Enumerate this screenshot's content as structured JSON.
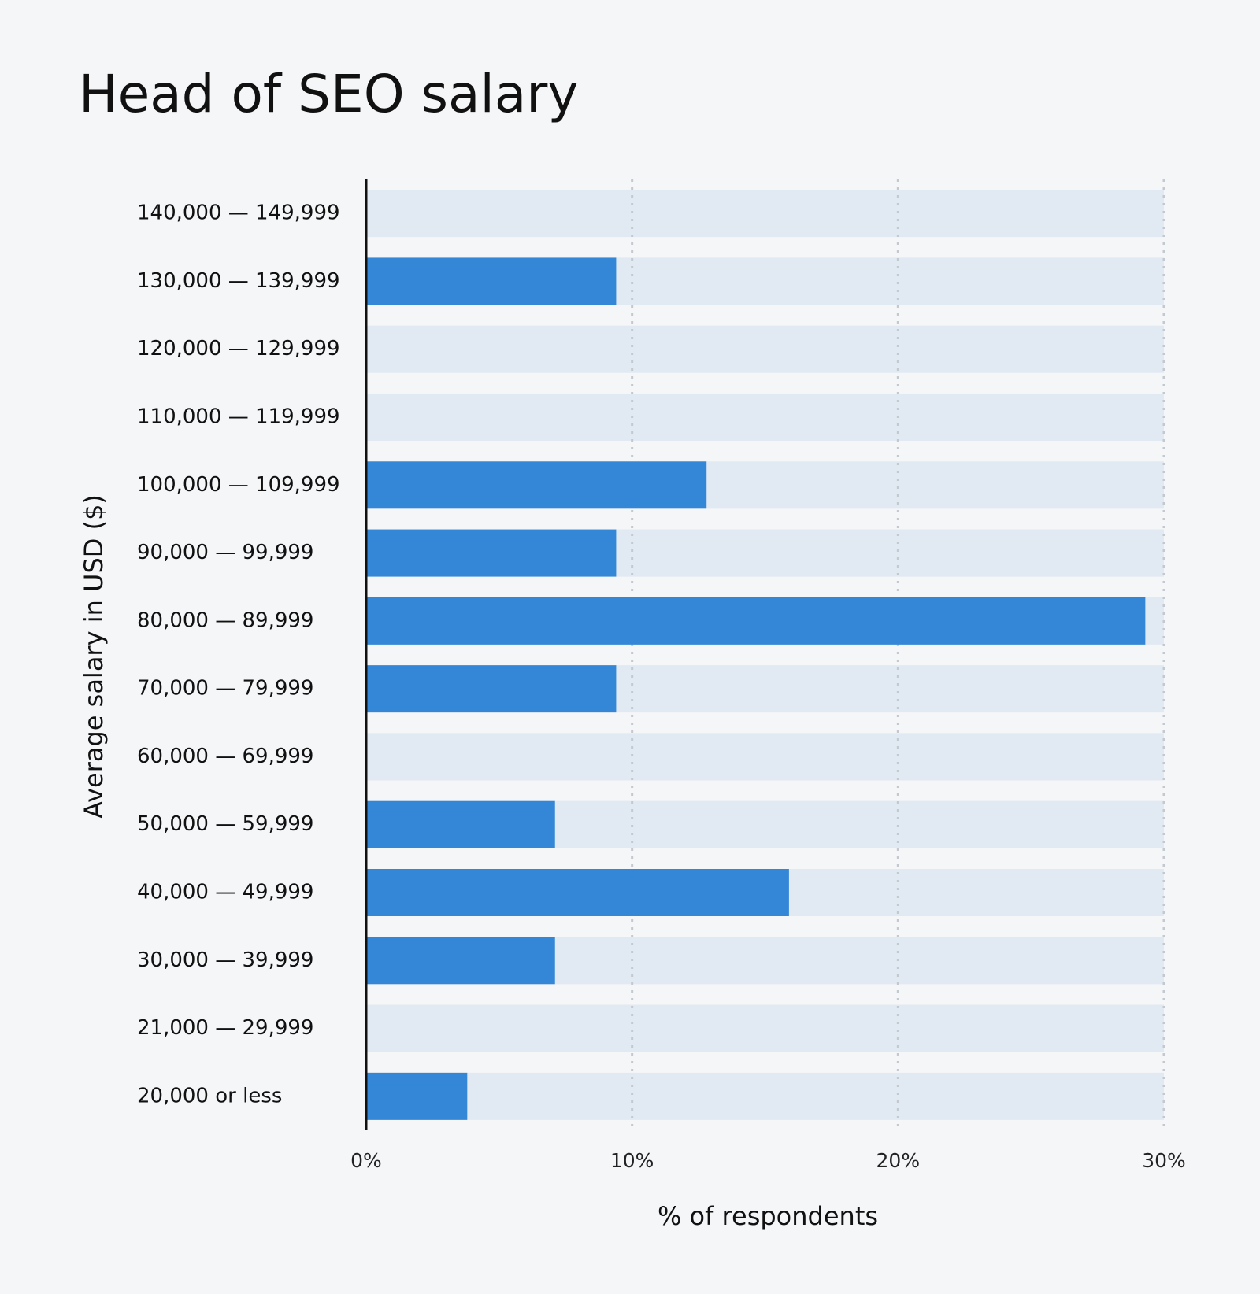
{
  "chart_data": {
    "type": "bar",
    "orientation": "horizontal",
    "title": "Head of SEO salary",
    "x_label": "% of respondents",
    "y_label": "Average salary in USD ($)",
    "categories": [
      "140,000 — 149,999",
      "130,000 — 139,999",
      "120,000 — 129,999",
      "110,000 — 119,999",
      "100,000 — 109,999",
      "90,000 — 99,999",
      "80,000 — 89,999",
      "70,000 — 79,999",
      "60,000 — 69,999",
      "50,000 — 59,999",
      "40,000 — 49,999",
      "30,000 — 39,999",
      "21,000 — 29,999",
      "20,000 or less"
    ],
    "values": [
      0,
      9.4,
      0,
      0,
      12.8,
      9.4,
      29.3,
      9.4,
      0,
      7.1,
      15.9,
      7.1,
      0,
      3.8
    ],
    "color": "#3487d6",
    "xlim": [
      0,
      30
    ],
    "xticks": [
      {
        "value": 0,
        "label": "0%"
      },
      {
        "value": 10,
        "label": "10%"
      },
      {
        "value": 20,
        "label": "20%"
      },
      {
        "value": 30,
        "label": "30%"
      }
    ],
    "grid": true
  }
}
